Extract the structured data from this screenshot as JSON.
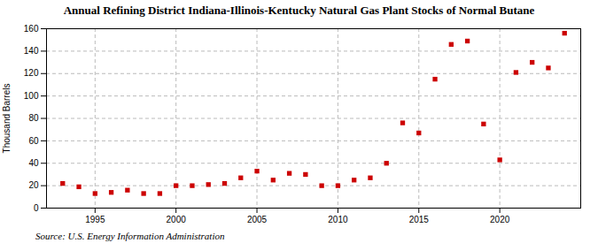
{
  "chart_data": {
    "type": "scatter",
    "title": "Annual Refining District Indiana-Illinois-Kentucky Natural Gas Plant Stocks of Normal Butane",
    "ylabel": "Thousand Barrels",
    "source": "Source: U.S. Energy Information Administration",
    "x": [
      1993,
      1994,
      1995,
      1996,
      1997,
      1998,
      1999,
      2000,
      2001,
      2002,
      2003,
      2004,
      2005,
      2006,
      2007,
      2008,
      2009,
      2010,
      2011,
      2012,
      2013,
      2014,
      2015,
      2016,
      2017,
      2018,
      2019,
      2020,
      2021,
      2022,
      2023,
      2024
    ],
    "values": [
      22,
      19,
      13,
      14,
      16,
      13,
      13,
      20,
      20,
      21,
      22,
      27,
      33,
      25,
      31,
      30,
      20,
      20,
      25,
      27,
      40,
      76,
      67,
      115,
      146,
      149,
      75,
      43,
      121,
      130,
      125,
      156
    ],
    "color": "#cc0000",
    "marker": "square",
    "xlim": [
      1992,
      2025
    ],
    "ylim": [
      0,
      160
    ],
    "xticks": [
      1995,
      2000,
      2005,
      2010,
      2015,
      2020
    ],
    "yticks": [
      0,
      20,
      40,
      60,
      80,
      100,
      120,
      140,
      160
    ],
    "grid": true
  }
}
